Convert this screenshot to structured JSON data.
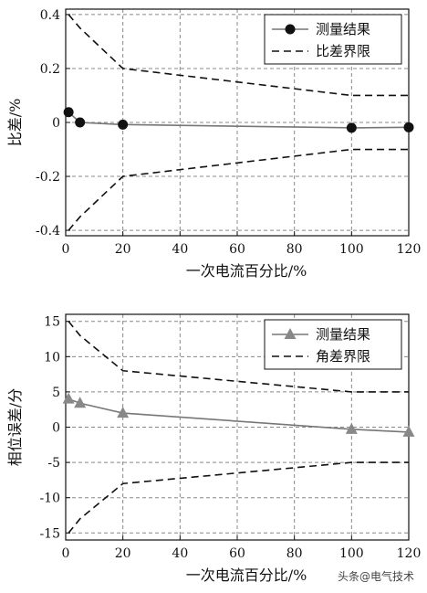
{
  "chart_data": [
    {
      "type": "line",
      "xlabel": "一次电流百分比/%",
      "ylabel": "比差/%",
      "xlim": [
        0,
        120
      ],
      "ylim": [
        -0.42,
        0.42
      ],
      "x_ticks": [
        0,
        20,
        40,
        60,
        80,
        100,
        120
      ],
      "y_ticks": [
        -0.4,
        -0.2,
        0,
        0.2,
        0.4
      ],
      "x_tick_labels": [
        "0",
        "20",
        "40",
        "60",
        "80",
        "100",
        "120"
      ],
      "y_tick_labels": [
        "-0.4",
        "-0.2",
        "0",
        "0.2",
        "0.4"
      ],
      "grid": true,
      "legend_position": "top-right",
      "series": [
        {
          "name": "测量结果",
          "style": "solid",
          "marker": "circle",
          "x": [
            1,
            5,
            20,
            100,
            120
          ],
          "y": [
            0.038,
            0.0,
            -0.008,
            -0.02,
            -0.018
          ]
        },
        {
          "name": "比差界限",
          "style": "dashed",
          "x": [
            1,
            5,
            20,
            100,
            120
          ],
          "y": [
            0.4,
            0.35,
            0.2,
            0.1,
            0.1
          ]
        },
        {
          "name": "",
          "style": "dashed",
          "x": [
            1,
            5,
            20,
            100,
            120
          ],
          "y": [
            -0.4,
            -0.35,
            -0.2,
            -0.1,
            -0.1
          ]
        }
      ]
    },
    {
      "type": "line",
      "xlabel": "一次电流百分比/%",
      "ylabel": "相位误差/分",
      "xlim": [
        0,
        120
      ],
      "ylim": [
        -16,
        16
      ],
      "x_ticks": [
        0,
        20,
        40,
        60,
        80,
        100,
        120
      ],
      "y_ticks": [
        -15,
        -10,
        -5,
        0,
        5,
        10,
        15
      ],
      "x_tick_labels": [
        "0",
        "20",
        "40",
        "60",
        "80",
        "100",
        "120"
      ],
      "y_tick_labels": [
        "-15",
        "-10",
        "-5",
        "0",
        "5",
        "10",
        "15"
      ],
      "grid": true,
      "legend_position": "top-right",
      "series": [
        {
          "name": "测量结果",
          "style": "solid",
          "marker": "triangle",
          "x": [
            1,
            5,
            20,
            100,
            120
          ],
          "y": [
            4.0,
            3.4,
            2.0,
            -0.3,
            -0.7
          ]
        },
        {
          "name": "角差界限",
          "style": "dashed",
          "x": [
            1,
            5,
            20,
            100,
            120
          ],
          "y": [
            15,
            13,
            8,
            5,
            5
          ]
        },
        {
          "name": "",
          "style": "dashed",
          "x": [
            1,
            5,
            20,
            100,
            120
          ],
          "y": [
            -15,
            -13,
            -8,
            -5,
            -5
          ]
        }
      ]
    }
  ],
  "colors": {
    "measurement": "#777777",
    "marker_top": "#111111",
    "marker_bottom": "#888888",
    "limit": "#111111",
    "grid": "#888888"
  },
  "watermark": "头条@电气技术"
}
